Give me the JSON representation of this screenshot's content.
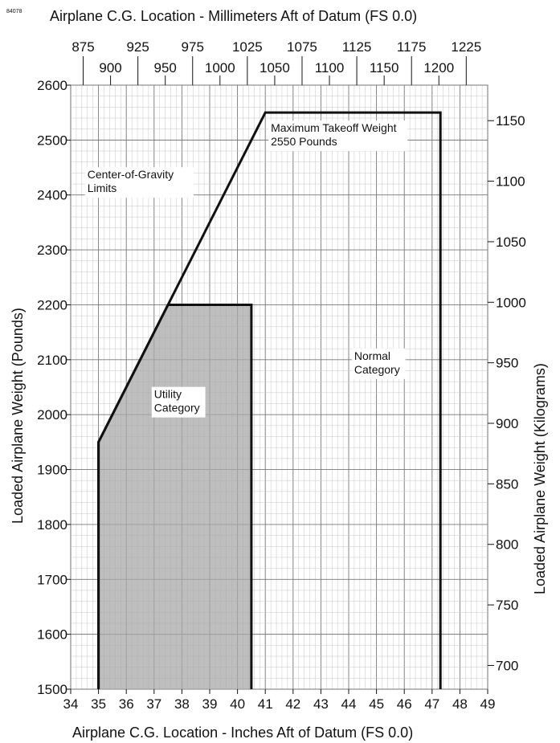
{
  "figure_number": "84078",
  "chart_data": {
    "type": "line",
    "title": "Airplane C.G. Location - Millimeters Aft of Datum (FS 0.0)",
    "xlabel": "Airplane C.G. Location - Inches Aft of Datum (FS 0.0)",
    "ylabel": "Loaded Airplane Weight (Pounds)",
    "y2label": "Loaded Airplane Weight (Kilograms)",
    "xlim": [
      34,
      49
    ],
    "ylim": [
      1500,
      2600
    ],
    "x_ticks": [
      "34",
      "35",
      "36",
      "37",
      "38",
      "39",
      "40",
      "41",
      "42",
      "43",
      "44",
      "45",
      "46",
      "47",
      "48",
      "49"
    ],
    "y_ticks": [
      "1500",
      "1600",
      "1700",
      "1800",
      "1900",
      "2000",
      "2100",
      "2200",
      "2300",
      "2400",
      "2500",
      "2600"
    ],
    "mm_ticks_upper": [
      "875",
      "925",
      "975",
      "1025",
      "1075",
      "1125",
      "1175",
      "1225"
    ],
    "mm_ticks_lower": [
      "900",
      "950",
      "1000",
      "1050",
      "1100",
      "1150",
      "1200"
    ],
    "kg_ticks": [
      "700",
      "750",
      "800",
      "850",
      "900",
      "950",
      "1000",
      "1050",
      "1100",
      "1150"
    ],
    "grid": true,
    "series": [
      {
        "name": "Normal Category",
        "points": [
          [
            35.0,
            1500
          ],
          [
            35.0,
            1950
          ],
          [
            41.0,
            2550
          ],
          [
            47.3,
            2550
          ],
          [
            47.3,
            1500
          ]
        ]
      },
      {
        "name": "Utility Category",
        "points": [
          [
            35.0,
            1500
          ],
          [
            35.0,
            1950
          ],
          [
            37.5,
            2200
          ],
          [
            40.5,
            2200
          ],
          [
            40.5,
            1500
          ]
        ],
        "fill": "#a8a8a8"
      }
    ],
    "annotations": [
      {
        "text": [
          "Center-of-Gravity",
          "Limits"
        ],
        "x": 34.6,
        "y": 2430
      },
      {
        "text": [
          "Maximum Takeoff Weight",
          "2550 Pounds"
        ],
        "x": 41.2,
        "y": 2515
      },
      {
        "text": [
          "Normal",
          "Category"
        ],
        "x": 44.2,
        "y": 2100
      },
      {
        "text": [
          "Utility",
          "Category"
        ],
        "x": 37.0,
        "y": 2030
      }
    ]
  }
}
